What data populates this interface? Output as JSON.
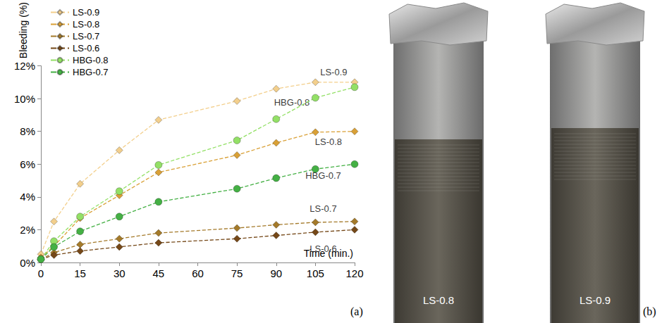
{
  "chart_data": {
    "type": "line",
    "y_label": "Bleeding (%)",
    "x_label": "Time (min.)",
    "x": [
      0,
      5,
      15,
      30,
      45,
      75,
      90,
      105,
      120
    ],
    "xlim": [
      0,
      120
    ],
    "xticks": [
      0,
      15,
      30,
      45,
      60,
      75,
      90,
      105,
      120
    ],
    "ylim": [
      0,
      12
    ],
    "yticks": [
      {
        "value": 0,
        "label": "0%"
      },
      {
        "value": 2,
        "label": "2%"
      },
      {
        "value": 4,
        "label": "4%"
      },
      {
        "value": 6,
        "label": "6%"
      },
      {
        "value": 8,
        "label": "8%"
      },
      {
        "value": 10,
        "label": "10%"
      },
      {
        "value": 12,
        "label": "12%"
      }
    ],
    "grid": false,
    "legend": "top-left",
    "line_style": "dashed",
    "series": [
      {
        "name": "LS-0.9",
        "color": "#f3cf8c",
        "marker": "diamond",
        "values": [
          0.5,
          2.5,
          4.8,
          6.85,
          8.7,
          9.85,
          10.6,
          11.0,
          11.0
        ]
      },
      {
        "name": "LS-0.8",
        "color": "#d9a036",
        "marker": "diamond",
        "values": [
          0.3,
          1.0,
          2.7,
          4.1,
          5.5,
          6.55,
          7.3,
          7.95,
          8.0
        ]
      },
      {
        "name": "LS-0.7",
        "color": "#a47a2a",
        "marker": "diamond",
        "values": [
          0.2,
          0.6,
          1.1,
          1.45,
          1.8,
          2.1,
          2.3,
          2.45,
          2.5
        ]
      },
      {
        "name": "LS-0.6",
        "color": "#754818",
        "marker": "diamond",
        "values": [
          0.2,
          0.45,
          0.7,
          0.95,
          1.2,
          1.45,
          1.65,
          1.85,
          2.0
        ]
      },
      {
        "name": "HBG-0.8",
        "color": "#93e066",
        "marker": "circle",
        "values": [
          0.2,
          1.3,
          2.8,
          4.35,
          5.95,
          7.45,
          8.75,
          10.05,
          10.7
        ]
      },
      {
        "name": "HBG-0.7",
        "color": "#44b044",
        "marker": "circle",
        "values": [
          0.2,
          0.95,
          1.9,
          2.8,
          3.7,
          4.5,
          5.15,
          5.7,
          6.0
        ]
      }
    ],
    "annotations": [
      {
        "text": "LS-0.9",
        "x": 112,
        "y": 11.6
      },
      {
        "text": "HBG-0.8",
        "x": 96,
        "y": 9.75
      },
      {
        "text": "LS-0.8",
        "x": 110,
        "y": 7.35
      },
      {
        "text": "HBG-0.7",
        "x": 108,
        "y": 5.3
      },
      {
        "text": "LS-0.7",
        "x": 108,
        "y": 3.3
      },
      {
        "text": "LS-0.6",
        "x": 108,
        "y": 0.85
      }
    ]
  },
  "panel_labels": [
    "(a)",
    "(b)"
  ],
  "photo": {
    "tubes": [
      "LS-0.8",
      "LS-0.9"
    ]
  }
}
